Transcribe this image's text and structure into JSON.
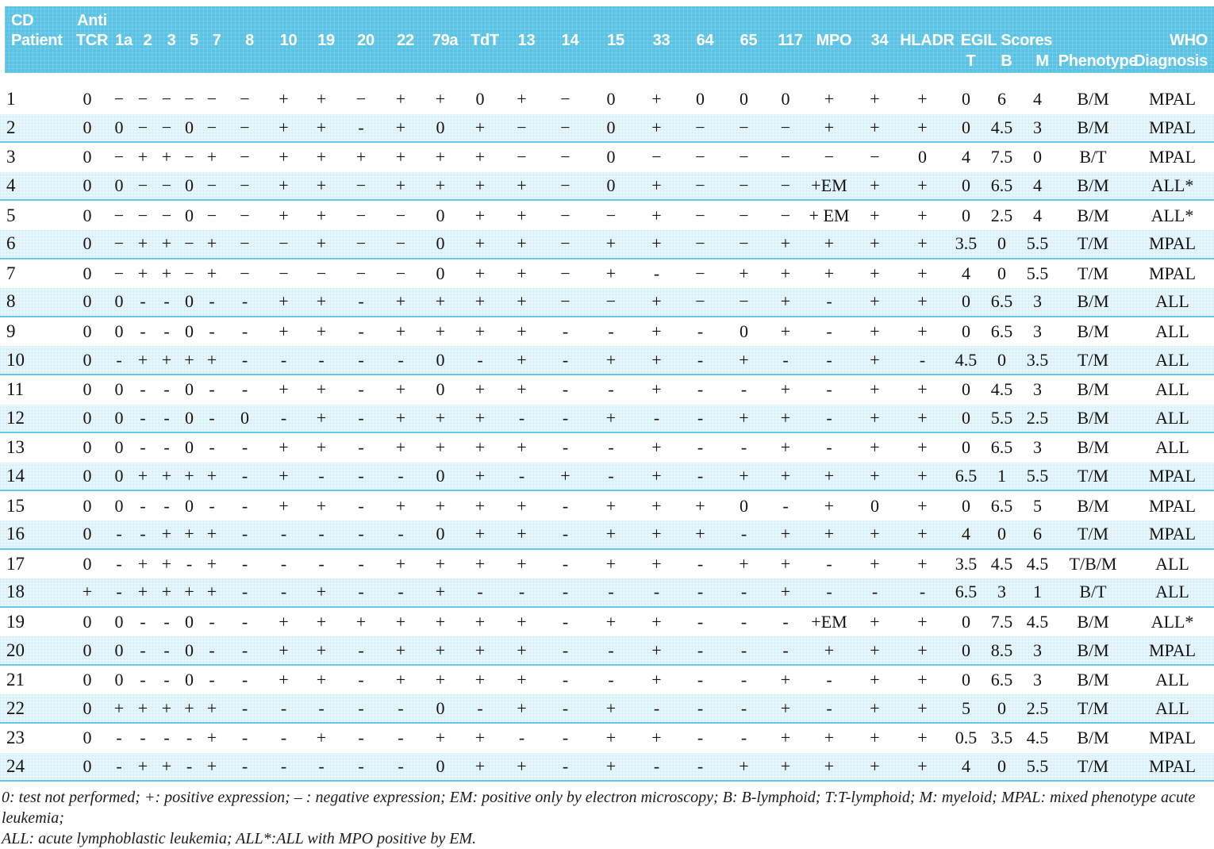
{
  "table": {
    "header": {
      "cd_label": "CD",
      "patient_label": "Patient",
      "anti_label": "Anti",
      "tcr_label": "TCR",
      "cd_columns": [
        "1a",
        "2",
        "3",
        "5",
        "7",
        "8",
        "10",
        "19",
        "20",
        "22",
        "79a",
        "TdT",
        "13",
        "14",
        "15",
        "33",
        "64",
        "65",
        "117",
        "MPO",
        "34",
        "HLADR"
      ],
      "egil_label": "EGIL Scores",
      "egil_t": "T",
      "egil_b": "B",
      "egil_m": "M",
      "phenotype_label": "Phenotype",
      "who_label": "WHO",
      "diagnosis_label": "Diagnosis"
    },
    "rows": [
      {
        "patient": "1",
        "markers": [
          "0",
          "−",
          "−",
          "−",
          "−",
          "−",
          "−",
          "+",
          "+",
          "−",
          "+",
          "+",
          "0",
          "+",
          "−",
          "0",
          "+",
          "0",
          "0",
          "0",
          "+",
          "+",
          "+"
        ],
        "egil": {
          "t": "0",
          "b": "6",
          "m": "4"
        },
        "phenotype": "B/M",
        "who": "MPAL"
      },
      {
        "patient": "2",
        "markers": [
          "0",
          "0",
          "−",
          "−",
          "0",
          "−",
          "−",
          "+",
          "+",
          "-",
          "+",
          "0",
          "+",
          "−",
          "−",
          "0",
          "+",
          "−",
          "−",
          "−",
          "+",
          "+",
          "+"
        ],
        "egil": {
          "t": "0",
          "b": "4.5",
          "m": "3"
        },
        "phenotype": "B/M",
        "who": "MPAL"
      },
      {
        "patient": "3",
        "markers": [
          "0",
          "−",
          "+",
          "+",
          "−",
          "+",
          "−",
          "+",
          "+",
          "+",
          "+",
          "+",
          "+",
          "−",
          "−",
          "0",
          "−",
          "−",
          "−",
          "−",
          "−",
          "−",
          "0"
        ],
        "egil": {
          "t": "4",
          "b": "7.5",
          "m": "0"
        },
        "phenotype": "B/T",
        "who": "MPAL"
      },
      {
        "patient": "4",
        "markers": [
          "0",
          "0",
          "−",
          "−",
          "0",
          "−",
          "−",
          "+",
          "+",
          "−",
          "+",
          "+",
          "+",
          "+",
          "−",
          "0",
          "+",
          "−",
          "−",
          "−",
          "+EM",
          "+",
          "+"
        ],
        "egil": {
          "t": "0",
          "b": "6.5",
          "m": "4"
        },
        "phenotype": "B/M",
        "who": "ALL*"
      },
      {
        "patient": "5",
        "markers": [
          "0",
          "−",
          "−",
          "−",
          "0",
          "−",
          "−",
          "+",
          "+",
          "−",
          "−",
          "0",
          "+",
          "+",
          "−",
          "−",
          "+",
          "−",
          "−",
          "−",
          "+ EM",
          "+",
          "+"
        ],
        "egil": {
          "t": "0",
          "b": "2.5",
          "m": "4"
        },
        "phenotype": "B/M",
        "who": "ALL*"
      },
      {
        "patient": "6",
        "markers": [
          "0",
          "−",
          "+",
          "+",
          "−",
          "+",
          "−",
          "−",
          "+",
          "−",
          "−",
          "0",
          "+",
          "+",
          "−",
          "+",
          "+",
          "−",
          "−",
          "+",
          "+",
          "+",
          "+"
        ],
        "egil": {
          "t": "3.5",
          "b": "0",
          "m": "5.5"
        },
        "phenotype": "T/M",
        "who": "MPAL"
      },
      {
        "patient": "7",
        "markers": [
          "0",
          "−",
          "+",
          "+",
          "−",
          "+",
          "−",
          "−",
          "−",
          "−",
          "−",
          "0",
          "+",
          "+",
          "−",
          "+",
          "-",
          "−",
          "+",
          "+",
          "+",
          "+",
          "+"
        ],
        "egil": {
          "t": "4",
          "b": "0",
          "m": "5.5"
        },
        "phenotype": "T/M",
        "who": "MPAL"
      },
      {
        "patient": "8",
        "markers": [
          "0",
          "0",
          "-",
          "-",
          "0",
          "-",
          "-",
          "+",
          "+",
          "-",
          "+",
          "+",
          "+",
          "+",
          "−",
          "−",
          "+",
          "−",
          "−",
          "+",
          "-",
          "+",
          "+"
        ],
        "egil": {
          "t": "0",
          "b": "6.5",
          "m": "3"
        },
        "phenotype": "B/M",
        "who": "ALL"
      },
      {
        "patient": "9",
        "markers": [
          "0",
          "0",
          "-",
          "-",
          "0",
          "-",
          "-",
          "+",
          "+",
          "-",
          "+",
          "+",
          "+",
          "+",
          "-",
          "-",
          "+",
          "-",
          "0",
          "+",
          "-",
          "+",
          "+"
        ],
        "egil": {
          "t": "0",
          "b": "6.5",
          "m": "3"
        },
        "phenotype": "B/M",
        "who": "ALL"
      },
      {
        "patient": "10",
        "markers": [
          "0",
          "-",
          "+",
          "+",
          "+",
          "+",
          "-",
          "-",
          "-",
          "-",
          "-",
          "0",
          "-",
          "+",
          "-",
          "+",
          "+",
          "-",
          "+",
          "-",
          "-",
          "+",
          "-"
        ],
        "egil": {
          "t": "4.5",
          "b": "0",
          "m": "3.5"
        },
        "phenotype": "T/M",
        "who": "ALL"
      },
      {
        "patient": "11",
        "markers": [
          "0",
          "0",
          "-",
          "-",
          "0",
          "-",
          "-",
          "+",
          "+",
          "-",
          "+",
          "0",
          "+",
          "+",
          "-",
          "-",
          "+",
          "-",
          "-",
          "+",
          "-",
          "+",
          "+"
        ],
        "egil": {
          "t": "0",
          "b": "4.5",
          "m": "3"
        },
        "phenotype": "B/M",
        "who": "ALL"
      },
      {
        "patient": "12",
        "markers": [
          "0",
          "0",
          "-",
          "-",
          "0",
          "-",
          "0",
          "-",
          "+",
          "-",
          "+",
          "+",
          "+",
          "-",
          "-",
          "+",
          "-",
          "-",
          "+",
          "+",
          "-",
          "+",
          "+"
        ],
        "egil": {
          "t": "0",
          "b": "5.5",
          "m": "2.5"
        },
        "phenotype": "B/M",
        "who": "ALL"
      },
      {
        "patient": "13",
        "markers": [
          "0",
          "0",
          "-",
          "-",
          "0",
          "-",
          "-",
          "+",
          "+",
          "-",
          "+",
          "+",
          "+",
          "+",
          "-",
          "-",
          "+",
          "-",
          "-",
          "+",
          "-",
          "+",
          "+"
        ],
        "egil": {
          "t": "0",
          "b": "6.5",
          "m": "3"
        },
        "phenotype": "B/M",
        "who": "ALL"
      },
      {
        "patient": "14",
        "markers": [
          "0",
          "0",
          "+",
          "+",
          "+",
          "+",
          "-",
          "+",
          "-",
          "-",
          "-",
          "0",
          "+",
          "-",
          "+",
          "-",
          "+",
          "-",
          "+",
          "+",
          "+",
          "+",
          "+"
        ],
        "egil": {
          "t": "6.5",
          "b": "1",
          "m": "5.5"
        },
        "phenotype": "T/M",
        "who": "MPAL"
      },
      {
        "patient": "15",
        "markers": [
          "0",
          "0",
          "-",
          "-",
          "0",
          "-",
          "-",
          "+",
          "+",
          "-",
          "+",
          "+",
          "+",
          "+",
          "-",
          "+",
          "+",
          "+",
          "0",
          "-",
          "+",
          "0",
          "+"
        ],
        "egil": {
          "t": "0",
          "b": "6.5",
          "m": "5"
        },
        "phenotype": "B/M",
        "who": "MPAL"
      },
      {
        "patient": "16",
        "markers": [
          "0",
          "-",
          "-",
          "+",
          "+",
          "+",
          "-",
          "-",
          "-",
          "-",
          "-",
          "0",
          "+",
          "+",
          "-",
          "+",
          "+",
          "+",
          "-",
          "+",
          "+",
          "+",
          "+"
        ],
        "egil": {
          "t": "4",
          "b": "0",
          "m": "6"
        },
        "phenotype": "T/M",
        "who": "MPAL"
      },
      {
        "patient": "17",
        "markers": [
          "0",
          "-",
          "+",
          "+",
          "-",
          "+",
          "-",
          "-",
          "-",
          "-",
          "+",
          "+",
          "+",
          "+",
          "-",
          "+",
          "+",
          "-",
          "+",
          "+",
          "-",
          "+",
          "+"
        ],
        "egil": {
          "t": "3.5",
          "b": "4.5",
          "m": "4.5"
        },
        "phenotype": "T/B/M",
        "who": "ALL"
      },
      {
        "patient": "18",
        "markers": [
          "+",
          "-",
          "+",
          "+",
          "+",
          "+",
          "-",
          "-",
          "+",
          "-",
          "-",
          "+",
          "-",
          "-",
          "-",
          "-",
          "-",
          "-",
          "-",
          "+",
          "-",
          "-",
          "-"
        ],
        "egil": {
          "t": "6.5",
          "b": "3",
          "m": "1"
        },
        "phenotype": "B/T",
        "who": "ALL"
      },
      {
        "patient": "19",
        "markers": [
          "0",
          "0",
          "-",
          "-",
          "0",
          "-",
          "-",
          "+",
          "+",
          "+",
          "+",
          "+",
          "+",
          "+",
          "-",
          "+",
          "+",
          "-",
          "-",
          "-",
          "+EM",
          "+",
          "+"
        ],
        "egil": {
          "t": "0",
          "b": "7.5",
          "m": "4.5"
        },
        "phenotype": "B/M",
        "who": "ALL*"
      },
      {
        "patient": "20",
        "markers": [
          "0",
          "0",
          "-",
          "-",
          "0",
          "-",
          "-",
          "+",
          "+",
          "-",
          "+",
          "+",
          "+",
          "+",
          "-",
          "-",
          "+",
          "-",
          "-",
          "-",
          "+",
          "+",
          "+"
        ],
        "egil": {
          "t": "0",
          "b": "8.5",
          "m": "3"
        },
        "phenotype": "B/M",
        "who": "MPAL"
      },
      {
        "patient": "21",
        "markers": [
          "0",
          "0",
          "-",
          "-",
          "0",
          "-",
          "-",
          "+",
          "+",
          "-",
          "+",
          "+",
          "+",
          "+",
          "-",
          "-",
          "+",
          "-",
          "-",
          "+",
          "-",
          "+",
          "+"
        ],
        "egil": {
          "t": "0",
          "b": "6.5",
          "m": "3"
        },
        "phenotype": "B/M",
        "who": "ALL"
      },
      {
        "patient": "22",
        "markers": [
          "0",
          "+",
          "+",
          "+",
          "+",
          "+",
          "-",
          "-",
          "-",
          "-",
          "-",
          "0",
          "-",
          "+",
          "-",
          "+",
          "-",
          "-",
          "-",
          "+",
          "-",
          "+",
          "+"
        ],
        "egil": {
          "t": "5",
          "b": "0",
          "m": "2.5"
        },
        "phenotype": "T/M",
        "who": "ALL"
      },
      {
        "patient": "23",
        "markers": [
          "0",
          "-",
          "-",
          "-",
          "-",
          "+",
          "-",
          "-",
          "+",
          "-",
          "-",
          "+",
          "+",
          "-",
          "-",
          "+",
          "+",
          "-",
          "-",
          "+",
          "+",
          "+",
          "+"
        ],
        "egil": {
          "t": "0.5",
          "b": "3.5",
          "m": "4.5"
        },
        "phenotype": "B/M",
        "who": "MPAL"
      },
      {
        "patient": "24",
        "markers": [
          "0",
          "-",
          "+",
          "+",
          "-",
          "+",
          "-",
          "-",
          "-",
          "-",
          "-",
          "0",
          "+",
          "+",
          "-",
          "+",
          "-",
          "-",
          "+",
          "+",
          "+",
          "+",
          "+"
        ],
        "egil": {
          "t": "4",
          "b": "0",
          "m": "5.5"
        },
        "phenotype": "T/M",
        "who": "MPAL"
      }
    ]
  },
  "footnote": {
    "line1": "0: test not performed; +: positive expression; – : negative expression; EM: positive only by electron microscopy; B: B-lymphoid; T:T-lymphoid; M: myeloid; MPAL: mixed phenotype acute leukemia;",
    "line2": "ALL: acute lymphoblastic leukemia; ALL*:ALL with MPO positive by EM."
  },
  "colors": {
    "header_bg": "#5ac3e4",
    "header_text": "#ffffff",
    "row_stripe_bg": "#e2f4fb",
    "stripe_divider": "#62c9ea",
    "body_text": "#141414"
  }
}
